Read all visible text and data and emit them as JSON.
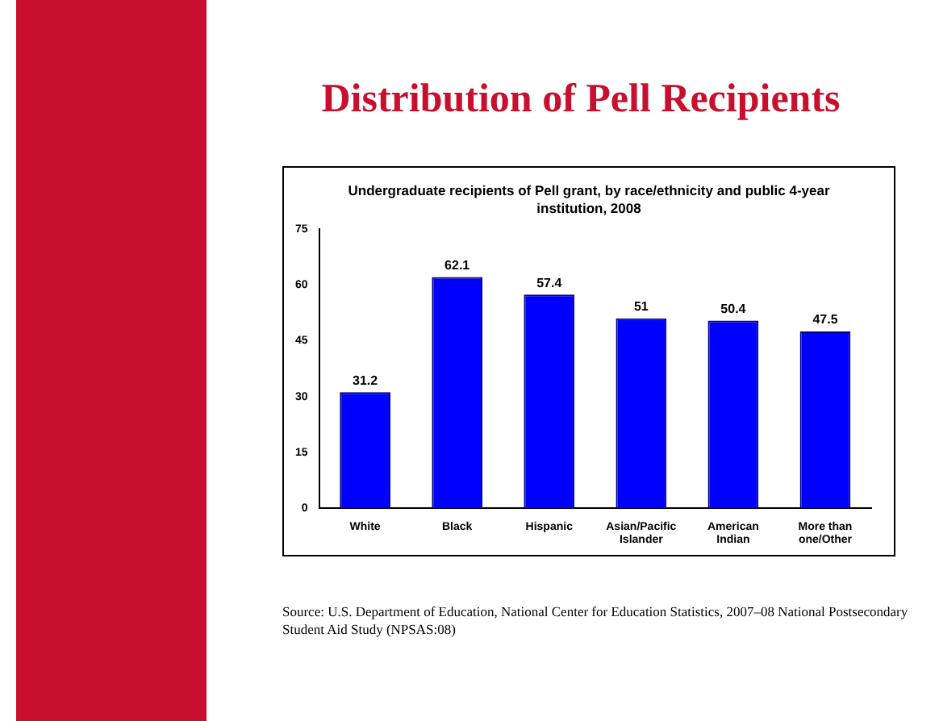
{
  "chart_data": {
    "type": "bar",
    "title": "Distribution of Pell Recipients",
    "subtitle": "Undergraduate recipients of Pell grant, by race/ethnicity and public 4-year institution, 2008",
    "categories": [
      "White",
      "Black",
      "Hispanic",
      "Asian/Pacific Islander",
      "American Indian",
      "More than one/Other"
    ],
    "values": [
      31.2,
      62.1,
      57.4,
      51,
      50.4,
      47.5
    ],
    "color": "#0000ff",
    "ylim": [
      0,
      75
    ],
    "yticks": [
      0,
      15,
      30,
      45,
      60,
      75
    ],
    "grid": false,
    "legend": false,
    "data_labels": true,
    "annotations": [
      "Source: U.S. Department of Education, National Center for Education Statistics, 2007–08 National Postsecondary Student Aid Study (NPSAS:08)"
    ]
  }
}
